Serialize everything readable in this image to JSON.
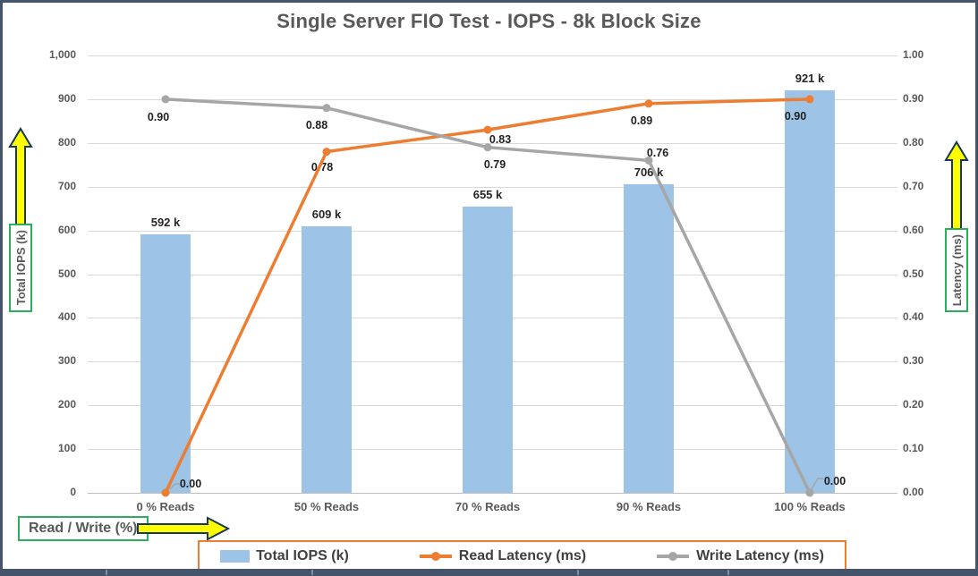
{
  "title": "Single Server FIO Test - IOPS - 8k Block Size",
  "axes": {
    "left": {
      "label": "Total IOPS (k)",
      "ticks": [
        "1,000",
        "900",
        "800",
        "700",
        "600",
        "500",
        "400",
        "300",
        "200",
        "100",
        "0"
      ]
    },
    "right": {
      "label": "Latency (ms)",
      "ticks": [
        "1.00",
        "0.90",
        "0.80",
        "0.70",
        "0.60",
        "0.50",
        "0.40",
        "0.30",
        "0.20",
        "0.10",
        "0.00"
      ]
    },
    "x": {
      "label": "Read / Write (%)"
    }
  },
  "legend": {
    "items": [
      {
        "label": "Total IOPS (k)",
        "type": "bar-swatch",
        "color": "#9DC3E6"
      },
      {
        "label": "Read Latency (ms)",
        "type": "line-marker",
        "color": "#ED7D31"
      },
      {
        "label": "Write Latency (ms)",
        "type": "line-marker",
        "color": "#A6A6A6"
      }
    ]
  },
  "colors": {
    "bar": "#9DC3E6",
    "read_line": "#ED7D31",
    "write_line": "#A6A6A6",
    "arrow_fill": "#FFFF00",
    "arrow_stroke": "#17375D",
    "green_box_border": "#2EAD5C",
    "legend_border": "#ED7D31",
    "frame": "#44546A",
    "title_text": "#595959"
  },
  "chart_data": {
    "type": "bar",
    "subtype": "combo-bar-line-dual-axis",
    "title": "Single Server FIO Test - IOPS - 8k Block Size",
    "categories": [
      "0 % Reads",
      "50 % Reads",
      "70 % Reads",
      "90 % Reads",
      "100 % Reads"
    ],
    "series": [
      {
        "name": "Total IOPS (k)",
        "type": "bar",
        "axis": "left",
        "color": "#9DC3E6",
        "values": [
          592,
          609,
          655,
          706,
          921
        ],
        "data_labels": [
          "592 k",
          "609 k",
          "655 k",
          "706 k",
          "921 k"
        ]
      },
      {
        "name": "Read Latency (ms)",
        "type": "line",
        "axis": "right",
        "color": "#ED7D31",
        "values": [
          0.0,
          0.78,
          0.83,
          0.89,
          0.9
        ],
        "data_labels": [
          "0.00",
          "0.78",
          "0.83",
          "0.89",
          "0.90"
        ]
      },
      {
        "name": "Write Latency (ms)",
        "type": "line",
        "axis": "right",
        "color": "#A6A6A6",
        "values": [
          0.9,
          0.88,
          0.79,
          0.76,
          0.0
        ],
        "data_labels": [
          "0.90",
          "0.88",
          "0.79",
          "0.76",
          "0.00"
        ]
      }
    ],
    "left_axis": {
      "label": "Total IOPS (k)",
      "min": 0,
      "max": 1000,
      "step": 100
    },
    "right_axis": {
      "label": "Latency (ms)",
      "min": 0,
      "max": 1.0,
      "step": 0.1
    },
    "xlabel": "Read / Write (%)",
    "grid": "horizontal-only",
    "legend_position": "bottom"
  }
}
